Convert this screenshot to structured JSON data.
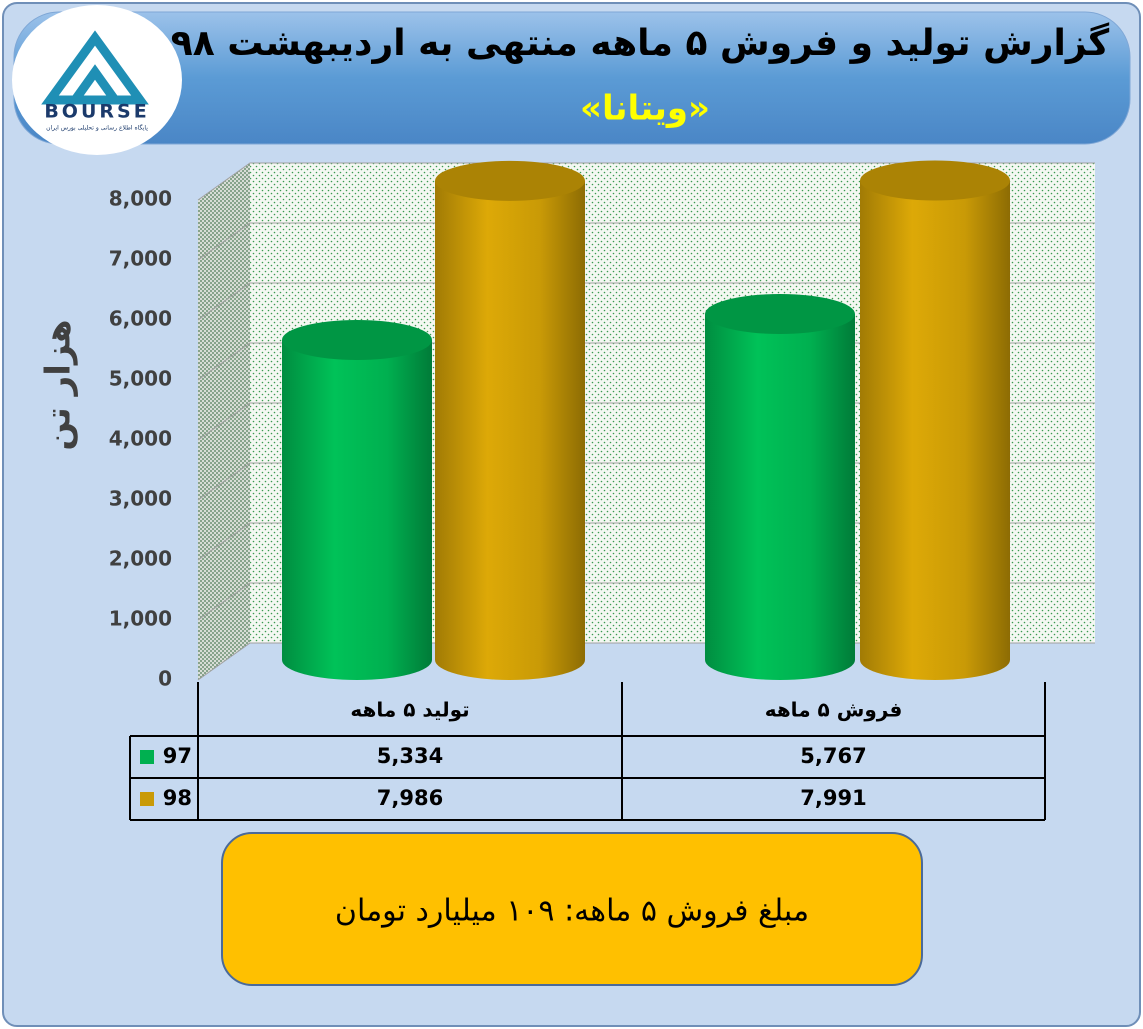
{
  "logo": {
    "text": "BOURSE",
    "caption": "پایگاه اطلاع رسانی و تحلیلی بورس ایران"
  },
  "chart_data": {
    "type": "bar",
    "title": "گزارش تولید و فروش ۵ ماهه منتهی به اردیبهشت ۹۸",
    "subtitle": "«ویتانا»",
    "y_label": "هزار تن",
    "categories": [
      "تولید ۵ ماهه",
      "فروش ۵ ماهه"
    ],
    "series": [
      {
        "name": "97",
        "color": "#00b050",
        "values": [
          5334,
          5767
        ],
        "value_labels": [
          "5,334",
          "5,767"
        ]
      },
      {
        "name": "98",
        "color": "#c99a06",
        "values": [
          7986,
          7991
        ],
        "value_labels": [
          "7,986",
          "7,991"
        ]
      }
    ],
    "ylim": [
      0,
      8000
    ],
    "yticks": [
      0,
      {
        "value": 1000,
        "label": "1,000"
      },
      {
        "value": 2000,
        "label": "2,000"
      },
      {
        "value": 3000,
        "label": "3,000"
      },
      {
        "value": 4000,
        "label": "4,000"
      },
      {
        "value": 5000,
        "label": "5,000"
      },
      {
        "value": 6000,
        "label": "6,000"
      },
      {
        "value": 7000,
        "label": "7,000"
      },
      {
        "value": 8000,
        "label": "8,000"
      }
    ],
    "grid": true,
    "annotation": "مبلغ فروش ۵ ماهه: ۱۰۹ میلیارد تومان"
  }
}
